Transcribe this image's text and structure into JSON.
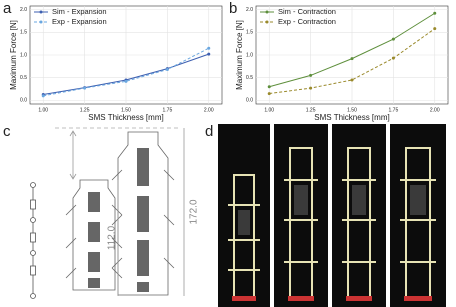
{
  "chart_data": [
    {
      "type": "line",
      "xlabel": "SMS Thickness [mm]",
      "ylabel": "Maximum Force [N]",
      "x": [
        1.0,
        1.25,
        1.5,
        1.75,
        2.0
      ],
      "series": [
        {
          "name": "Sim - Expansion",
          "color": "#3d5fb0",
          "linestyle": "solid",
          "values": [
            0.13,
            0.28,
            0.45,
            0.7,
            1.02
          ]
        },
        {
          "name": "Exp - Expansion",
          "color": "#6aa7e0",
          "linestyle": "dashed",
          "values": [
            0.1,
            0.27,
            0.42,
            0.68,
            1.15
          ]
        }
      ],
      "xlim": [
        0.92,
        2.08
      ],
      "ylim": [
        -0.08,
        2.08
      ],
      "xticks": [
        {
          "value": 1.0,
          "label": "1.00"
        },
        {
          "value": 1.25,
          "label": "1.25"
        },
        {
          "value": 1.5,
          "label": "1.50"
        },
        {
          "value": 1.75,
          "label": "1.75"
        },
        {
          "value": 2.0,
          "label": "2.00"
        }
      ],
      "yticks": [
        {
          "value": 0,
          "label": "0.0"
        },
        0.5,
        {
          "value": 1.0,
          "label": "1.0"
        },
        1.5,
        {
          "value": 2.0,
          "label": "2.0"
        }
      ],
      "grid": true,
      "legend": "upper left"
    },
    {
      "type": "line",
      "xlabel": "SMS Thickness [mm]",
      "ylabel": "Maximum Force [N]",
      "x": [
        1.0,
        1.25,
        1.5,
        1.75,
        2.0
      ],
      "series": [
        {
          "name": "Sim - Contraction",
          "color": "#5e8f3c",
          "linestyle": "solid",
          "values": [
            0.3,
            0.55,
            0.92,
            1.35,
            1.92
          ]
        },
        {
          "name": "Exp - Contraction",
          "color": "#9a8a2c",
          "linestyle": "dashed",
          "values": [
            0.15,
            0.27,
            0.45,
            0.93,
            1.58
          ]
        }
      ],
      "xlim": [
        0.92,
        2.08
      ],
      "ylim": [
        -0.08,
        2.08
      ],
      "xticks": [
        {
          "value": 1.0,
          "label": "1.00"
        },
        {
          "value": 1.25,
          "label": "1.25"
        },
        {
          "value": 1.5,
          "label": "1.50"
        },
        {
          "value": 1.75,
          "label": "1.75"
        },
        {
          "value": 2.0,
          "label": "2.00"
        }
      ],
      "yticks": [
        {
          "value": 0,
          "label": "0.0"
        },
        0.5,
        {
          "value": 1.0,
          "label": "1.0"
        },
        1.5,
        {
          "value": 2.0,
          "label": "2.0"
        }
      ],
      "grid": true,
      "legend": "upper left"
    }
  ],
  "panels": {
    "a": "a",
    "b": "b",
    "c": "c",
    "d": "d"
  },
  "diagram": {
    "dimensions": [
      "112.0",
      "172.0"
    ]
  }
}
